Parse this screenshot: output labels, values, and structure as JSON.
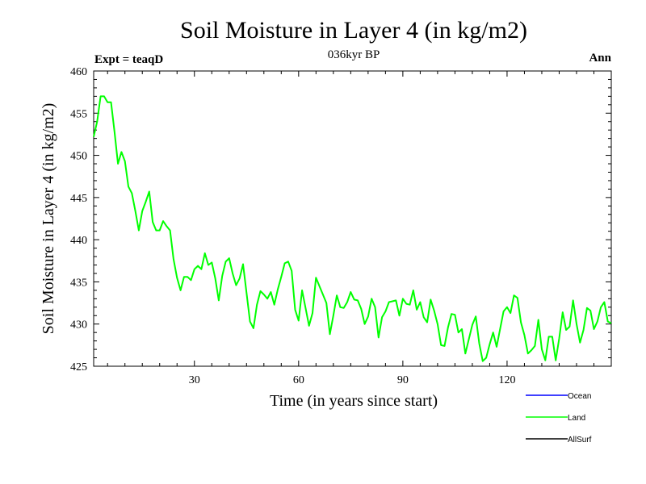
{
  "chart_data": {
    "type": "line",
    "title": "Soil Moisture in Layer 4 (in kg/m2)",
    "subtitle": "036kyr BP",
    "left_label": "Expt = teaqD",
    "right_label": "Ann",
    "xlabel": "Time (in years since start)",
    "ylabel": "Soil Moisture in Layer 4 (in kg/m2)",
    "xlim": [
      1,
      150
    ],
    "ylim": [
      425,
      460
    ],
    "x_ticks": [
      30,
      60,
      90,
      120
    ],
    "y_ticks": [
      425,
      430,
      435,
      440,
      445,
      450,
      455,
      460
    ],
    "legend": [
      {
        "name": "Ocean",
        "color": "#0000ff"
      },
      {
        "name": "Land",
        "color": "#00ff00"
      },
      {
        "name": "AllSurf",
        "color": "#000000"
      }
    ],
    "series": [
      {
        "name": "Land",
        "color": "#00ff00",
        "x_start": 1,
        "values": [
          452.2,
          454.0,
          457.0,
          457.0,
          456.3,
          456.3,
          452.8,
          449.0,
          450.4,
          449.3,
          446.3,
          445.5,
          443.4,
          441.1,
          443.4,
          444.5,
          445.7,
          442.1,
          441.1,
          441.1,
          442.2,
          441.6,
          441.1,
          437.7,
          435.5,
          434.0,
          435.6,
          435.6,
          435.2,
          436.5,
          436.9,
          436.5,
          438.4,
          437.0,
          437.3,
          435.4,
          432.8,
          435.7,
          437.4,
          437.8,
          436.0,
          434.6,
          435.4,
          437.1,
          433.7,
          430.3,
          429.5,
          432.3,
          433.9,
          433.5,
          433.0,
          433.8,
          432.3,
          434.1,
          435.6,
          437.2,
          437.4,
          436.3,
          431.7,
          430.4,
          434.0,
          431.9,
          429.8,
          431.3,
          435.5,
          434.5,
          433.5,
          432.5,
          428.8,
          431.0,
          433.4,
          432.0,
          431.9,
          432.6,
          433.8,
          432.9,
          432.8,
          431.8,
          430.0,
          430.9,
          433.0,
          432.0,
          428.4,
          430.8,
          431.5,
          432.6,
          432.7,
          432.8,
          431.0,
          433.0,
          432.4,
          432.3,
          434.0,
          431.7,
          432.6,
          430.8,
          430.2,
          432.9,
          431.6,
          430.0,
          427.5,
          427.4,
          429.6,
          431.2,
          431.1,
          429.0,
          429.4,
          426.5,
          428.2,
          429.9,
          430.9,
          427.7,
          425.6,
          426.0,
          427.6,
          429.0,
          427.3,
          429.4,
          431.5,
          432.0,
          431.3,
          433.4,
          433.1,
          430.2,
          428.7,
          426.5,
          426.9,
          427.4,
          430.5,
          427.0,
          425.7,
          428.5,
          428.5,
          425.7,
          428.3,
          431.4,
          429.3,
          429.7,
          432.8,
          430.0,
          427.8,
          429.3,
          431.9,
          431.6,
          429.4,
          430.3,
          432.0,
          432.6,
          430.3,
          430.1
        ]
      }
    ]
  }
}
